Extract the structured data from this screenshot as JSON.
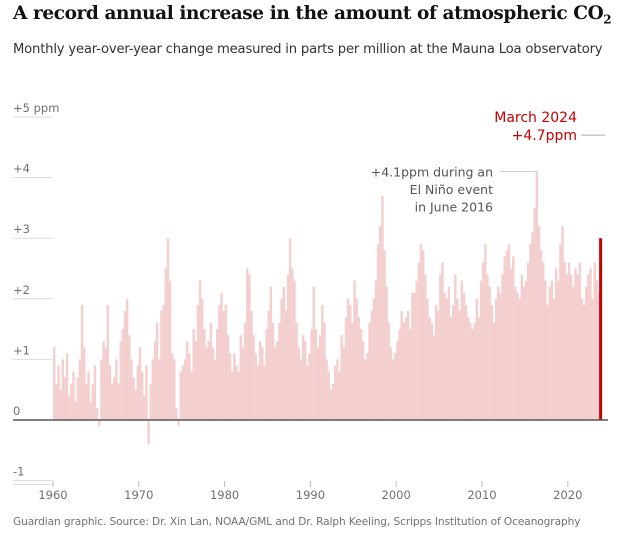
{
  "title": {
    "text": "A record annual increase in the amount of atmospheric CO",
    "subscript": "2"
  },
  "subtitle": "Monthly year-over-year change measured in parts per million at the Mauna Loa observatory",
  "source": "Guardian graphic. Source: Dr. Xin Lan, NOAA/GML and Dr. Ralph Keeling, Scripps Institution of Oceanography",
  "colors": {
    "bars": "#f4cfcf",
    "highlight": "#c70000",
    "zero_line": "#555555",
    "grid": "#dcdcdc"
  },
  "chart_data": {
    "type": "bar",
    "title": "A record annual increase in the amount of atmospheric CO2",
    "ylabel": "",
    "xlabel": "",
    "ylim": [
      -1,
      5
    ],
    "xlim": [
      1960,
      2024.25
    ],
    "grid": true,
    "y_ticks": [
      {
        "value": 5,
        "label": "+5 ppm"
      },
      {
        "value": 4,
        "label": "+4"
      },
      {
        "value": 3,
        "label": "+3"
      },
      {
        "value": 2,
        "label": "+2"
      },
      {
        "value": 1,
        "label": "+1"
      },
      {
        "value": 0,
        "label": "0"
      },
      {
        "value": -1,
        "label": "-1"
      }
    ],
    "x_ticks": [
      {
        "value": 1960,
        "label": "1960"
      },
      {
        "value": 1970,
        "label": "1970"
      },
      {
        "value": 1980,
        "label": "1980"
      },
      {
        "value": 1990,
        "label": "1990"
      },
      {
        "value": 2000,
        "label": "2000"
      },
      {
        "value": 2010,
        "label": "2010"
      },
      {
        "value": 2020,
        "label": "2020"
      }
    ],
    "series": [
      {
        "start_year": 1960,
        "periods_per_year": 4,
        "values": [
          1.2,
          0.6,
          0.9,
          0.5,
          1.0,
          0.7,
          1.1,
          0.4,
          0.6,
          0.8,
          0.3,
          0.7,
          1.0,
          1.9,
          1.2,
          0.6,
          0.8,
          0.3,
          0.6,
          0.9,
          0.2,
          -0.1,
          1.0,
          1.3,
          1.2,
          1.9,
          0.9,
          0.6,
          0.7,
          1.0,
          0.6,
          1.3,
          1.5,
          1.8,
          2.0,
          1.4,
          1.0,
          0.7,
          0.5,
          0.9,
          1.2,
          0.8,
          0.4,
          0.9,
          -0.4,
          0.6,
          1.0,
          1.3,
          1.6,
          1.0,
          1.8,
          1.9,
          2.5,
          3.0,
          2.3,
          1.1,
          1.0,
          0.2,
          -0.1,
          0.8,
          0.9,
          1.0,
          1.3,
          1.1,
          0.8,
          1.5,
          1.3,
          1.9,
          2.3,
          2.0,
          1.5,
          1.2,
          1.3,
          1.6,
          1.2,
          1.0,
          1.5,
          1.9,
          2.1,
          1.8,
          1.9,
          1.4,
          1.1,
          0.8,
          1.1,
          0.9,
          0.8,
          1.4,
          1.2,
          1.6,
          2.5,
          2.4,
          1.8,
          1.4,
          1.1,
          0.9,
          1.3,
          1.2,
          0.9,
          1.5,
          1.8,
          2.2,
          1.6,
          1.2,
          1.3,
          1.6,
          2.0,
          2.2,
          1.8,
          2.4,
          3.0,
          2.5,
          2.3,
          1.6,
          1.2,
          1.0,
          1.4,
          1.3,
          0.9,
          1.1,
          1.5,
          2.2,
          1.5,
          1.2,
          1.4,
          1.9,
          1.6,
          1.0,
          0.8,
          0.5,
          0.6,
          0.9,
          1.0,
          0.8,
          1.4,
          1.2,
          1.7,
          2.0,
          1.9,
          1.6,
          2.3,
          2.0,
          1.7,
          1.5,
          1.3,
          1.0,
          1.1,
          1.6,
          1.8,
          2.0,
          2.3,
          2.9,
          3.2,
          3.7,
          2.8,
          2.2,
          1.6,
          1.2,
          1.0,
          1.1,
          1.3,
          1.5,
          1.8,
          1.6,
          1.7,
          1.8,
          1.5,
          2.1,
          2.1,
          2.3,
          2.6,
          2.9,
          2.8,
          2.4,
          2.0,
          1.7,
          1.6,
          1.4,
          1.9,
          1.8,
          2.4,
          2.6,
          2.1,
          2.0,
          2.2,
          1.7,
          1.9,
          2.4,
          2.0,
          1.8,
          2.3,
          2.1,
          1.9,
          1.7,
          1.6,
          1.5,
          1.6,
          2.0,
          1.7,
          2.3,
          2.6,
          2.9,
          2.4,
          2.2,
          1.9,
          1.6,
          2.0,
          2.2,
          2.1,
          2.4,
          2.7,
          2.8,
          2.9,
          2.5,
          2.7,
          2.2,
          2.1,
          2.0,
          2.4,
          2.2,
          2.3,
          2.6,
          2.9,
          3.1,
          3.5,
          4.1,
          3.2,
          2.8,
          2.6,
          2.3,
          1.9,
          2.2,
          2.3,
          2.0,
          2.5,
          2.3,
          2.9,
          3.2,
          2.6,
          2.4,
          2.6,
          2.4,
          2.2,
          2.5,
          2.4,
          2.6,
          2.0,
          1.9,
          2.2,
          2.4,
          2.5,
          2.0,
          2.6,
          2.3,
          2.1,
          3.0
        ]
      }
    ],
    "highlight": {
      "label_line1": "March 2024",
      "label_line2": "+4.7ppm",
      "year": 2024.2,
      "value": 4.7
    },
    "annotations": [
      {
        "lines": [
          "+4.1ppm during an",
          "El Niño event",
          "in June 2016"
        ],
        "year": 2016.45,
        "value": 4.1
      }
    ]
  }
}
